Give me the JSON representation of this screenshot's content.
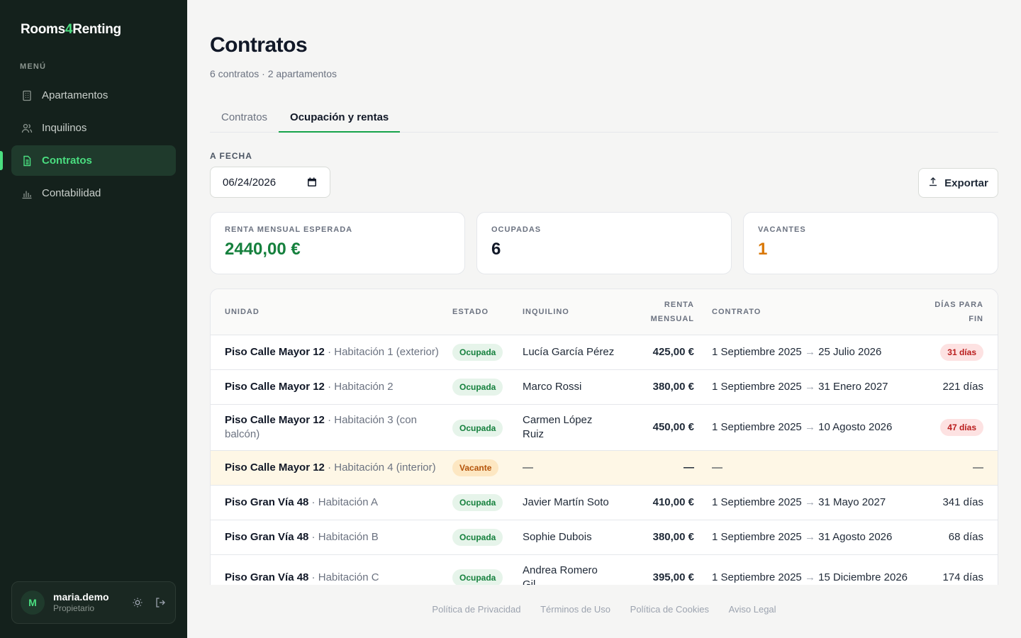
{
  "app": {
    "logo_part1": "Rooms",
    "logo_accent": "4",
    "logo_part2": "Renting"
  },
  "sidebar": {
    "menu_title": "MENÚ",
    "items": [
      {
        "label": "Apartamentos",
        "icon": "building-icon"
      },
      {
        "label": "Inquilinos",
        "icon": "users-icon"
      },
      {
        "label": "Contratos",
        "icon": "document-icon",
        "active": true
      },
      {
        "label": "Contabilidad",
        "icon": "bar-chart-icon"
      }
    ],
    "user": {
      "initial": "M",
      "name": "maria.demo",
      "role": "Propietario"
    }
  },
  "header": {
    "title": "Contratos",
    "subtitle": "6 contratos · 2 apartamentos"
  },
  "tabs": [
    {
      "label": "Contratos"
    },
    {
      "label": "Ocupación y rentas",
      "active": true
    }
  ],
  "filter": {
    "label": "A FECHA",
    "date": "06/24/2026"
  },
  "export_label": "Exportar",
  "stats": [
    {
      "label": "RENTA MENSUAL ESPERADA",
      "value": "2440,00 €",
      "color": "#15803d"
    },
    {
      "label": "OCUPADAS",
      "value": "6",
      "color": "#111827"
    },
    {
      "label": "VACANTES",
      "value": "1",
      "color": "#d97706"
    }
  ],
  "table": {
    "headers": {
      "unit": "UNIDAD",
      "status": "ESTADO",
      "tenant": "INQUILINO",
      "rent_l1": "RENTA",
      "rent_l2": "MENSUAL",
      "contract": "CONTRATO",
      "days_l1": "DÍAS PARA",
      "days_l2": "FIN"
    },
    "rows": [
      {
        "unit": "Piso Calle Mayor 12",
        "sub": "Habitación 1 (exterior)",
        "status": "Ocupada",
        "tenant": "Lucía García Pérez",
        "rent": "425,00 €",
        "start": "1 Septiembre 2025",
        "end": "25 Julio 2026",
        "days": "31 días",
        "alert": true
      },
      {
        "unit": "Piso Calle Mayor 12",
        "sub": "Habitación 2",
        "status": "Ocupada",
        "tenant": "Marco Rossi",
        "rent": "380,00 €",
        "start": "1 Septiembre 2025",
        "end": "31 Enero 2027",
        "days": "221 días"
      },
      {
        "unit": "Piso Calle Mayor 12",
        "sub": "Habitación 3 (con",
        "sub2": "balcón)",
        "status": "Ocupada",
        "tenant": "Carmen López",
        "tenant2": "Ruiz",
        "rent": "450,00 €",
        "start": "1 Septiembre 2025",
        "end": "10 Agosto 2026",
        "days": "47 días",
        "alert": true,
        "tall": true
      },
      {
        "unit": "Piso Calle Mayor 12",
        "sub": "Habitación 4 (interior)",
        "status": "Vacante",
        "tenant": "—",
        "rent": "—",
        "contract": "—",
        "days": "—",
        "vacant": true
      },
      {
        "unit": "Piso Gran Vía 48",
        "sub": "Habitación A",
        "status": "Ocupada",
        "tenant": "Javier Martín Soto",
        "rent": "410,00 €",
        "start": "1 Septiembre 2025",
        "end": "31 Mayo 2027",
        "days": "341 días"
      },
      {
        "unit": "Piso Gran Vía 48",
        "sub": "Habitación B",
        "status": "Ocupada",
        "tenant": "Sophie Dubois",
        "rent": "380,00 €",
        "start": "1 Septiembre 2025",
        "end": "31 Agosto 2026",
        "days": "68 días"
      },
      {
        "unit": "Piso Gran Vía 48",
        "sub": "Habitación C",
        "status": "Ocupada",
        "tenant": "Andrea Romero",
        "tenant2": "Gil",
        "rent": "395,00 €",
        "start": "1 Septiembre 2025",
        "end": "15 Diciembre 2026",
        "days": "174 días",
        "tall": true
      }
    ]
  },
  "footer": [
    "Política de Privacidad",
    "Términos de Uso",
    "Política de Cookies",
    "Aviso Legal"
  ]
}
